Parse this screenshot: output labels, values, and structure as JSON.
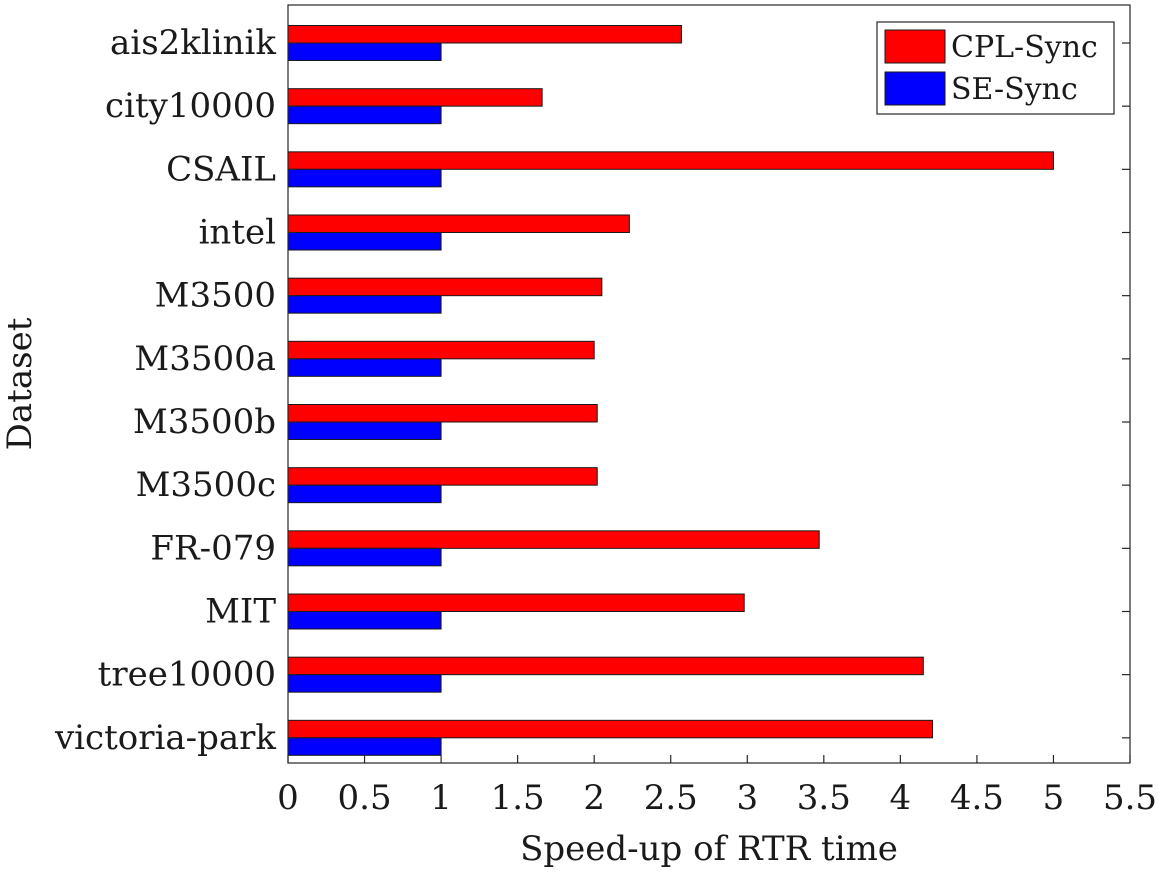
{
  "chart_data": {
    "type": "bar",
    "orientation": "horizontal",
    "categories": [
      "ais2klinik",
      "city10000",
      "CSAIL",
      "intel",
      "M3500",
      "M3500a",
      "M3500b",
      "M3500c",
      "FR-079",
      "MIT",
      "tree10000",
      "victoria-park"
    ],
    "series": [
      {
        "name": "CPL-Sync",
        "color": "#ff0000",
        "values": [
          2.57,
          1.66,
          5.0,
          2.23,
          2.05,
          2.0,
          2.02,
          2.02,
          3.47,
          2.98,
          4.15,
          4.21
        ]
      },
      {
        "name": "SE-Sync",
        "color": "#0000ff",
        "values": [
          1,
          1,
          1,
          1,
          1,
          1,
          1,
          1,
          1,
          1,
          1,
          1
        ]
      }
    ],
    "xlabel": "Speed-up of RTR time",
    "ylabel": "Dataset",
    "xlim": [
      0,
      5.5
    ],
    "xticks": [
      0,
      0.5,
      1,
      1.5,
      2,
      2.5,
      3,
      3.5,
      4,
      4.5,
      5,
      5.5
    ],
    "xtick_labels": [
      "0",
      "0.5",
      "1",
      "1.5",
      "2",
      "2.5",
      "3",
      "3.5",
      "4",
      "4.5",
      "5",
      "5.5"
    ],
    "grid": false,
    "legend_position": "top-right"
  }
}
